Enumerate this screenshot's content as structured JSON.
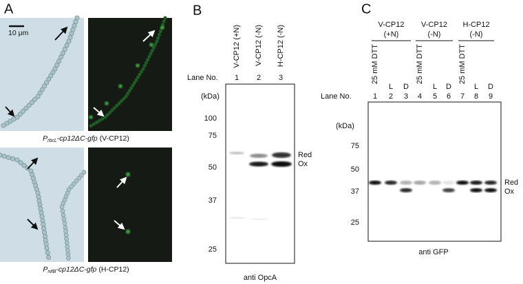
{
  "panel_a": {
    "label": "A",
    "scale_bar": "10 μm",
    "caption_top": {
      "promoter": "P",
      "promoter_sub": "rbcL",
      "construct": "-cp12ΔC-gfp",
      "strain": "(V-CP12)"
    },
    "caption_bottom": {
      "promoter": "P",
      "promoter_sub": "nifB",
      "construct": "-cp12ΔC-gfp",
      "strain": "(H-CP12)"
    }
  },
  "panel_b": {
    "label": "B",
    "lane_headers": [
      "V-CP12 (+N)",
      "V-CP12 (-N)",
      "H-CP12 (-N)"
    ],
    "lane_no_label": "Lane No.",
    "lanes": [
      "1",
      "2",
      "3"
    ],
    "unit": "(kDa)",
    "markers": [
      "100",
      "75",
      "50",
      "37",
      "25"
    ],
    "band_labels": [
      "Red",
      "Ox"
    ],
    "antibody": "anti OpcA"
  },
  "panel_c": {
    "label": "C",
    "groups": [
      {
        "name": "V-CP12",
        "condition": "(+N)"
      },
      {
        "name": "V-CP12",
        "condition": "(-N)"
      },
      {
        "name": "H-CP12",
        "condition": "(-N)"
      }
    ],
    "treatments": [
      "25 mM DTT",
      "L",
      "D",
      "25 mM DTT",
      "L",
      "D",
      "25 mM DTT",
      "L",
      "D"
    ],
    "lane_no_label": "Lane No.",
    "lanes": [
      "1",
      "2",
      "3",
      "4",
      "5",
      "6",
      "7",
      "8",
      "9"
    ],
    "unit": "(kDa)",
    "markers": [
      "75",
      "50",
      "37",
      "25"
    ],
    "band_labels": [
      "Red",
      "Ox"
    ],
    "antibody": "anti GFP"
  }
}
